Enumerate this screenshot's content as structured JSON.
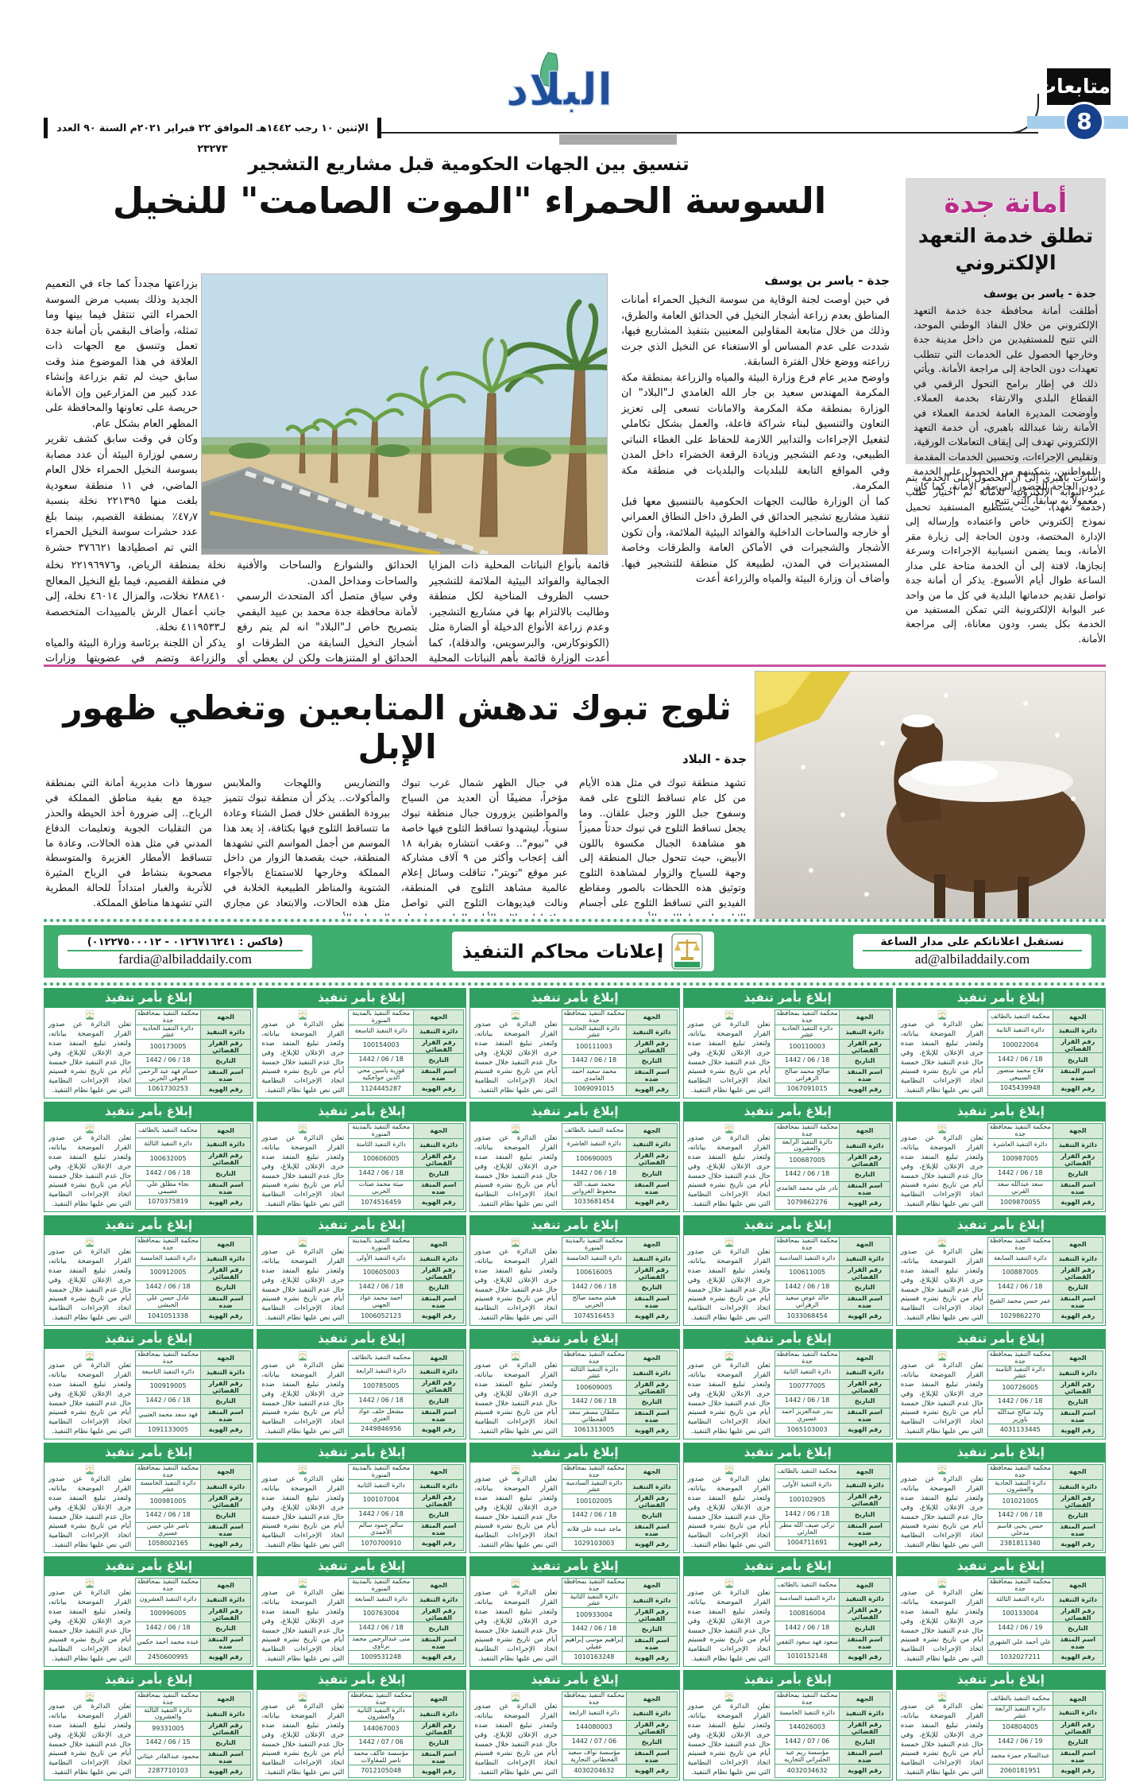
{
  "masthead": {
    "paper_name": "البلاد",
    "dateline": "الإثنين ١٠ رجب ١٤٤٢هـ الموافق ٢٢ فبراير ٢٠٢١م السنة ٩٠ العدد ٢٣٢٧٣",
    "section": "متابعات",
    "page_number": "8"
  },
  "article1": {
    "kicker": "تنسيق بين الجهات الحكومية قبل مشاريع التشجير",
    "headline": "السوسة الحمراء \"الموت الصامت\" للنخيل",
    "byline": "جدة - ياسر بن يوسف",
    "col_right": "في حين أوصت لجنة الوقاية من سوسة النخيل الحمراء أمانات المناطق بعدم زراعة أشجار النخيل في الحدائق العامة والطرق، وذلك من خلال متابعة المقاولين المعنيين بتنفيذ المشاريع فيها، شددت على عدم المساس أو الاستغناء عن النخيل الذي جرت زراعته ووضع خلال الفترة السابقة.\nواوضح مدير عام فرع وزارة البيئة والمياه والزراعة بمنطقة مكة المكرمة المهندس سعيد بن جار الله الغامدي لـ\"البلاد\" ان الوزارة بمنطقة مكة المكرمة والامانات تسعى إلى تعزيز التعاون والتنسيق لبناء شراكة فاعلة، والعمل بشكل تكاملي لتفعيل الإجراءات والتدابير اللازمة للحفاظ على الغطاء النباتي الطبيعي، ودعم التشجير وزيادة الرقعة الخضراء داخل المدن وفي المواقع التابعة للبلديات والبلديات في منطقة مكة المكرمة.\nكما أن الوزارة طالبت الجهات الحكومية بالتنسيق معها قبل تنفيذ مشاريع تشجير الحدائق في الطرق داخل النطاق العمراني أو خارجه والساحات الداخلية والفوائد البيئية الملائمة، وأن تكون الأشجار والشجيرات في الأماكن العامة والطرقات وخاصة المستديرات في المدن، لطبيعة كل منطقة للتشجير فيها. وأضاف أن وزارة البيئة والمياه والزراعة أعدت",
    "col_left": "بزراعتها مجدداً كما جاء في التعميم الجديد وذلك بسبب مرض السوسة الحمراء التي تنتقل فيما بينها وما تمثله، وأضاف البقمي بأن أمانة جدة تعمل وتنسق مع الجهات ذات العلاقة في هذا الموضوع منذ وقت سابق حيث لم تقم بزراعة وإنشاء عدد كبير من المزارعين وإن الأمانة حريصة على تعاونها والمحافظة على المظهر العام بشكل عام.\nوكان في وقت سابق كشف تقرير رسمي لوزارة البيئة أن عدد مصابة بسوسة النخيل الحمراء خلال العام الماضي، في ١١ منطقة سعودية بلغت منها ٢٢١٣٩٥ نخلة بنسبة ٤٧٫٧٪ بمنطقة القصيم، بينما بلغ عدد حشرات سوسة النخيل الحمراء التي تم اصطيادها ٣٧٦٦٢١ حشرة منها ٢٠٦٢٩٤ حشرة بمنطقة الرياض ما يعادل نسبة ٥٤٫٧٪. أظهر التقرير أن أعمال برنامج مكافحة سوسة النخيل الحمراء تضمنت فحص ٥٩ مليونا و٩٢٨ ألفا و٦٦٠ نخلة استحوذت منها منطقتا الرياض والقصيم على نسبة ٧٦٫٥٪ إذ تم فحص ٢٣٦٧٦٤٩٥",
    "bottom_cols": [
      "قائمة بأنواع النباتات المحلية ذات المزايا الجمالية والفوائد البيئية الملائمة للتشجير حسب الظروف المناخية لكل منطقة وطالبت بالالتزام بها في مشاريع التشجير، وعدم زراعة الأنواع الدخيلة أو الضارة مثل (الكونوكارس، والبرسويس، والدقلة)، كما أعدت الوزارة قائمة بأهم النباتات المحلية الملائمة لتشجير",
      "الحدائق والشوارع والساحات والأفنية والساحات ومداخل المدن.\nوفي سياق متصل أكد المتحدث الرسمي لأمانة محافظة جدة محمد بن عبيد البقمي بتصريح خاص لـ\"البلاد\" انه لم يتم رفع أشجار النخيل السابقة من الطرقات او الحدائق او المتنزهات ولكن لن يعطي أي تصريح",
      "نخلة بمنطقة الرياض، و٢٢١٩٦٩٧٦ نخلة في منطقة القصيم، فيما بلغ النخيل المعالج ٢٨٨٤١٠ نخلات، والمزال ٤٦٠١٤ نخلة، إلى جانب أعمال الرش بالمبيدات المتخصصة لـ٤١١٩٥٣٣ نخلة.\nيذكر أن اللجنة برئاسة وزارة البيئة والمياه والزراعة وتضم في عضويتها وزارات الداخلية، الشؤون البلدية والقروية والإسكان، المالية، الإعلام، والنقل."
    ]
  },
  "sidebar": {
    "title_accent": "أمانة جدة",
    "title_rest": "تطلق خدمة التعهد\nالإلكتروني",
    "byline": "جدة - ياسر بن يوسف",
    "body": "أطلقت أمانة محافظة جدة خدمة التعهد الإلكتروني من خلال النفاذ الوطني الموحد، التي تتيح للمستفيدين من داخل مدينة جدة وخارجها الحصول على الخدمات التي تتطلب تعهدات دون الحاجة إلى مراجعة الأمانة. ويأتي ذلك في إطار برامج التحول الرقمي في القطاع البلدي والارتقاء بخدمة العملاء. وأوضحت المديرة العامة لخدمة العملاء في الأمانة رشا عبدالله باهبري، أن خدمة التعهد الإلكتروني تهدف إلى إيقاف التعاملات الورقية، وتقليص الإجراءات، وتحسين الخدمات المقدمة للمواطنين، بتمكينهم من الحصول على الخدمة دون الحاجة للحضور إلى مقر الأمانة، كما كان معمولاً به سابقاً، التي تتيح",
    "body2": "وأشارت باهبري إلى أن الحصول على الخدمة يتم عبر البوابة الإلكترونية للأمانة ثم اختيار طلب (خدمة تعهد)، حيث يستطيع المستفيد تحميل نموذج إلكتروني خاص واعتماده وإرساله إلى الإدارة المختصة، ودون الحاجة إلى زيارة مقر الأمانة، وبما يضمن انسيابية الإجراءات وسرعة إنجازها، لافتة إلى أن الخدمة متاحة على مدار الساعة طوال أيام الأسبوع. يذكر أن أمانة جدة تواصل تقديم خدماتها البلدية في كل ما من واحد عبر البوابة الإلكترونية التي تمكن المستفيد من الخدمة بكل يسر، ودون معاناة، إلى مراجعة الأمانة."
  },
  "article2": {
    "headline": "ثلوج تبوك تدهش المتابعين وتغطي ظهور الإبل",
    "byline": "جدة - البلاد",
    "columns": [
      "تشهد منطقة تبوك في مثل هذه الأيام من كل عام تساقط الثلوج على قمة وسفوح جبل اللوز وجبل علقان.. وما يجعل تساقط الثلوج في تبوك حدثاً مميزاً هو مشاهدة الجبال مكسوة باللون الأبيض، حيث تتحول جبال المنطقة إلى وجهة للسياح والزوار لمشاهدة الثلوج وتوثيق هذه اللحظات بالصور ومقاطع الفيديو التي تساقط الثلوج على أجسام الإبل وظهورها باللون الأبيض.",
      "في جبال الظهر شمال غرب تبوك مؤخراً، مضيفًا أن العديد من السياح والمواطنين يزورون جبال منطقة تبوك سنوياً، ليشهدوا تساقط الثلوج فيها خاصة في \"نيوم\".. وعقب انتشاره بقرابة ١٨ ألف إعجاب وأكثر من ٩ آلاف مشاركة عبر موقع \"تويتر\"، تناقلت وسائل إعلام عالمية مشاهد الثلوج في المنطقة، ونالت فيديوهات الثلوج التي تواصل تساقطها خلال الأيام الماضية اهتمام المغردين، وأفاد موقع \"NEW YORK POST\" الأمريكي بنشر مقطع الفيديو",
      "والتضاريس واللهجات والملابس والمأكولات.. يذكر أن منطقة تبوك تتميز ببرودة الطقس خلال فصل الشتاء وعادة ما تتساقط الثلوج فيها بكثافة، إذ يعد هذا الموسم من أجمل المواسم التي تشهدها المنطقة، حيث يقصدها الزوار من داخل المملكة وخارجها للاستمتاع بالأجواء الشتوية والمناظر الطبيعية الخلابة في مثل هذه الحالات، والابتعاد عن مجاري السيول والأودية.",
      "سورها ذات مديرية أمانة التي بمنطقة جيدة مع بقية مناطق المملكة في الرياح.. إلى ضرورة أخذ الحيطة والحذر من التقلبات الجوية وتعليمات الدفاع المدني في مثل هذه الحالات، وعادة ما تتساقط الأمطار الغزيرة والمتوسطة مصحوبة بنشاط في الرياح المثيرة للأتربة والغبار امتداداً للحالة المطرية التي تشهدها مناطق المملكة."
    ]
  },
  "banner": {
    "receive_line": "نستقبل اعلاناتكم على مدار الساعة",
    "email_right": "ad@albiladdaily.com",
    "title": "إعلانات محاكم التنفيذ",
    "fax_line": "(فاكس : ٠١٢٦٧١٦٢٤١ - ٠١٢٢٧٥٠٠٠١٢)",
    "email_left": "fardia@albiladdaily.com"
  },
  "notice_template": {
    "title": "إبلاغ بأمر تنفيذ",
    "body": "تعلن الدائرة عن صدور القرار الموضحة بياناته، ولتعذر تبليغ المنفذ ضده جرى الإعلان للإبلاغ، وفي حال عدم التنفيذ خلال خمسة أيام من تاريخ نشره فسيتم اتخاذ الإجراءات النظامية التي نص عليها نظام التنفيذ.",
    "labels": [
      "الجهة",
      "دائرة التنفيذ",
      "رقم القرار القضائي",
      "التاريخ",
      "اسم المنفذ ضده",
      "رقم الهوية"
    ]
  },
  "notices": [
    [
      "محكمة التنفيذ بمحافظة جدة",
      "دائرة التنفيذ الحادية عشر",
      "100173005",
      "18 / 06 / 1442",
      "حسام فهد عبد الرحمن العوفي الحربي",
      "1061730253"
    ],
    [
      "محكمة التنفيذ بالمدينة المنورة",
      "دائرة التنفيذ التاسعة",
      "100154003",
      "18 / 06 / 1442",
      "فوزية ياسين محي الدين خواجكيه",
      "1124445287"
    ],
    [
      "محكمة التنفيذ بمحافظة جدة",
      "دائرة التنفيذ الحادية عشر",
      "100111003",
      "18 / 06 / 1442",
      "محمد سعيد أحمد الغامدي",
      "1069091015"
    ],
    [
      "محكمة التنفيذ بمحافظة جدة",
      "دائرة التنفيذ الحادية عشر",
      "100110003",
      "18 / 06 / 1442",
      "صالح محمد صالح الزهراني",
      "1067091015"
    ],
    [
      "محكمة التنفيذ بالطائف",
      "دائرة التنفيذ الثانية",
      "100022004",
      "18 / 06 / 1442",
      "فلاح محمد منصور السبيعي",
      "1045439948"
    ],
    [
      "محكمة التنفيذ بالطائف",
      "دائرة التنفيذ الثالثة",
      "100632005",
      "18 / 06 / 1442",
      "نجاء مطلق علي عصيمي",
      "1070375819"
    ],
    [
      "محكمة التنفيذ بالمدينة المنورة",
      "دائرة التنفيذ الثامنة",
      "100606005",
      "18 / 06 / 1442",
      "ميثة محمد صنات الحربي",
      "1074516459"
    ],
    [
      "محكمة التنفيذ بالطائف",
      "دائرة التنفيذ العاشرة",
      "100690005",
      "18 / 06 / 1442",
      "محمد ضيف الله محفوظ الغزواني",
      "1033681454"
    ],
    [
      "محكمة التنفيذ بمحافظة جدة",
      "دائرة التنفيذ الرابعة والعشرون",
      "100687005",
      "18 / 06 / 1442",
      "نادر علي محمد الغامدي",
      "1079862276"
    ],
    [
      "محكمة التنفيذ بمحافظة جدة",
      "دائرة التنفيذ العاشرة",
      "100987005",
      "18 / 06 / 1442",
      "سعد عبدالله سعد القرني",
      "1009870055"
    ],
    [
      "محكمة التنفيذ بمحافظة جدة",
      "دائرة التنفيذ الخامسة",
      "100912005",
      "18 / 06 / 1442",
      "عادل حسن علي الحبشي",
      "1041051338"
    ],
    [
      "محكمة التنفيذ بالمدينة المنورة",
      "دائرة التنفيذ الأولى",
      "100605003",
      "18 / 06 / 1442",
      "أحمد محمد عواد الجهني",
      "1006052123"
    ],
    [
      "محكمة التنفيذ بالمدينة المنورة",
      "دائرة التنفيذ الخامسة",
      "100616005",
      "18 / 06 / 1442",
      "هيثم محمد صالح الحربي",
      "1074516453"
    ],
    [
      "محكمة التنفيذ بمحافظة جدة",
      "دائرة التنفيذ السادسة",
      "100611005",
      "18 / 06 / 1442",
      "خالد عوض سعيد الزهراني",
      "1033068454"
    ],
    [
      "محكمة التنفيذ بمحافظة جدة",
      "دائرة التنفيذ السابعة",
      "100887005",
      "18 / 06 / 1442",
      "عمر حسن محمد الشيخ",
      "1029862270"
    ],
    [
      "محكمة التنفيذ بمحافظة جدة",
      "دائرة التنفيذ التاسعة",
      "100919005",
      "18 / 06 / 1442",
      "فهد سعد محمد العتيبي",
      "1091133005"
    ],
    [
      "محكمة التنفيذ بالطائف",
      "دائرة التنفيذ الرابعة",
      "100785005",
      "18 / 06 / 1442",
      "مشعل خلف عواد العنزي",
      "2449846956"
    ],
    [
      "محكمة التنفيذ بمحافظة جدة",
      "دائرة التنفيذ الثالثة عشر",
      "100609005",
      "18 / 06 / 1442",
      "سلطان مسفر سعد القحطاني",
      "1061313005"
    ],
    [
      "محكمة التنفيذ بمحافظة جدة",
      "دائرة التنفيذ الثانية",
      "100777005",
      "18 / 06 / 1442",
      "بندر عبدالعزيز أحمد عسيري",
      "1065103003"
    ],
    [
      "محكمة التنفيذ بمحافظة جدة",
      "دائرة التنفيذ الثامنة عشر",
      "100726005",
      "18 / 06 / 1442",
      "وليد صالح عبدالله باوزير",
      "4031133445"
    ],
    [
      "محكمة التنفيذ بمحافظة جدة",
      "دائرة التنفيذ الخامسة عشر",
      "100981005",
      "18 / 06 / 1442",
      "ناصر علي حسن عسيري",
      "1058002165"
    ],
    [
      "محكمة التنفيذ بالمدينة المنورة",
      "دائرة التنفيذ الثانية",
      "100107004",
      "18 / 06 / 1442",
      "سالم حمود سالم الأحمدي",
      "1070700910"
    ],
    [
      "محكمة التنفيذ بمحافظة جدة",
      "دائرة التنفيذ السادسة عشر",
      "100102005",
      "18 / 06 / 1442",
      "ماجد عبده علي فلاته",
      "1029103003"
    ],
    [
      "محكمة التنفيذ بالطائف",
      "دائرة التنفيذ الأولى",
      "100102905",
      "18 / 06 / 1442",
      "تركي ضيف الله مطر الحارثي",
      "1004711691"
    ],
    [
      "محكمة التنفيذ بمحافظة جدة",
      "دائرة التنفيذ الحادية والعشرون",
      "101021005",
      "18 / 06 / 1442",
      "حسن يحيى قاسم مدخلي",
      "2381811340"
    ],
    [
      "محكمة التنفيذ بمحافظة جدة",
      "دائرة التنفيذ العشرون",
      "100996005",
      "18 / 06 / 1442",
      "عبده محمد أحمد حكمي",
      "2450600995"
    ],
    [
      "محكمة التنفيذ بالمدينة المنورة",
      "دائرة التنفيذ السابعة",
      "100763004",
      "18 / 06 / 1442",
      "منى عبدالرحمن محمد برناوي",
      "1009531248"
    ],
    [
      "محكمة التنفيذ بمحافظة جدة",
      "دائرة التنفيذ الثانية عشر",
      "100933004",
      "18 / 06 / 1442",
      "إبراهيم موسى إبراهيم عقيلي",
      "1010163248"
    ],
    [
      "محكمة التنفيذ بالطائف",
      "دائرة التنفيذ السادسة",
      "100816004",
      "18 / 06 / 1442",
      "سعود فهد سعود الثقفي",
      "1010152148"
    ],
    [
      "محكمة التنفيذ بمحافظة جدة",
      "دائرة التنفيذ الثالثة",
      "100133004",
      "19 / 06 / 1442",
      "علي أحمد علي الشهري",
      "1032027211"
    ],
    [
      "محكمة التنفيذ بمحافظة جدة",
      "دائرة التنفيذ الثالثة والعشرون",
      "99331005",
      "15 / 06 / 1442",
      "محمود عبدالقادر عيثاني",
      "2287710103"
    ],
    [
      "محكمة التنفيذ بمحافظة جدة",
      "دائرة التنفيذ الثانية والعشرون",
      "144067003",
      "06 / 07 / 1442",
      "مؤسسة عاكف محمد ناصر للمقاولات",
      "7012105048"
    ],
    [
      "محكمة التنفيذ بمحافظة جدة",
      "دائرة التنفيذ الرابعة",
      "144080003",
      "06 / 07 / 1442",
      "مؤسسة نواف سعيد القحطاني التجارية",
      "4030204632"
    ],
    [
      "محكمة التنفيذ بمحافظة جدة",
      "دائرة التنفيذ الخامسة",
      "144026003",
      "06 / 07 / 1442",
      "مؤسسة ريم عيد الحلبراني التجاريه",
      "4032034632"
    ],
    [
      "محكمة التنفيذ بالطائف",
      "دائرة التنفيذ الرابعة عشر",
      "104804005",
      "19 / 06 / 1442",
      "عبدالسلام حمزة محمد",
      "2060181951"
    ]
  ]
}
